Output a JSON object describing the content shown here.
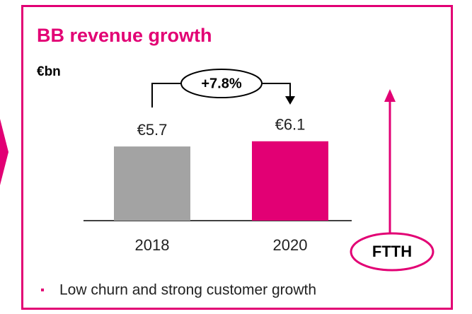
{
  "chart_data": {
    "type": "bar",
    "title": "BB revenue growth",
    "y_label": "€bn",
    "categories": [
      "2018",
      "2020"
    ],
    "values": [
      5.7,
      6.1
    ],
    "value_labels": [
      "€5.7",
      "€6.1"
    ],
    "colors": [
      "#a3a3a3",
      "#e20074"
    ],
    "annotations": {
      "change": "+7.8%",
      "driver": "FTTH"
    },
    "notes": [
      "Low churn and strong customer growth"
    ]
  }
}
